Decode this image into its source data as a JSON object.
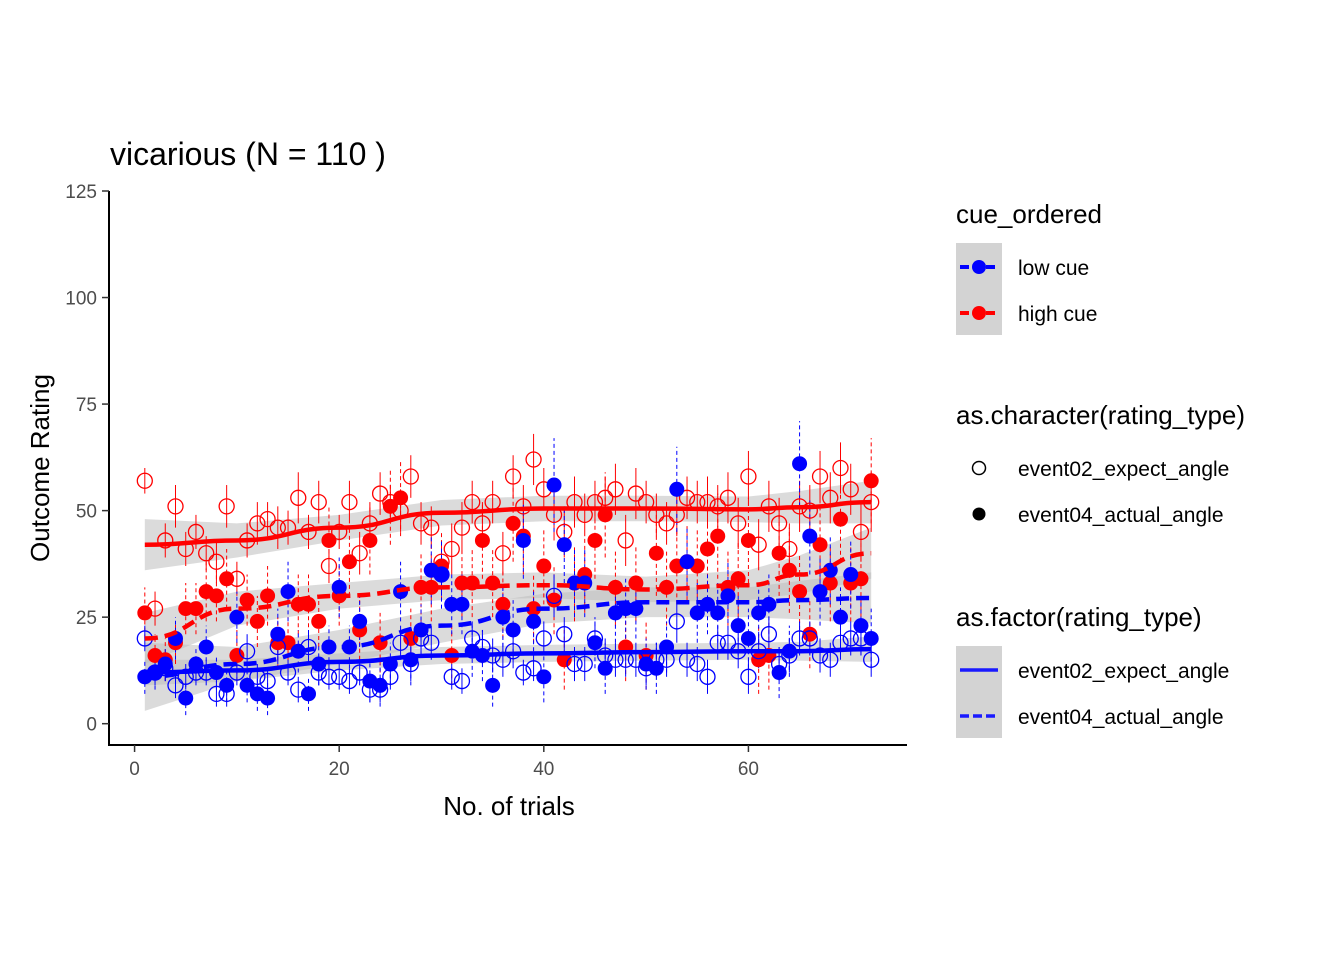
{
  "chart_data": {
    "type": "scatter",
    "title": "vicarious (N =  110 )",
    "xlabel": "No. of trials",
    "ylabel": "Outcome Rating",
    "xlim": [
      -2.5,
      75.5
    ],
    "ylim": [
      -5,
      125
    ],
    "xticks": [
      0,
      20,
      40,
      60
    ],
    "xtick_labels": [
      "0",
      "20",
      "40",
      "60"
    ],
    "yticks": [
      0,
      25,
      50,
      75,
      100,
      125
    ],
    "ytick_labels": [
      "0",
      "25",
      "50",
      "75",
      "100",
      "125"
    ],
    "grid": false,
    "legend_position": "right",
    "colors": {
      "low cue": "#0000ff",
      "high cue": "#ff0000",
      "ribbon": "#bebebe"
    },
    "legends": {
      "cue": {
        "title": "cue_ordered",
        "entries": [
          "low cue",
          "high cue"
        ]
      },
      "shape": {
        "title": "as.character(rating_type)",
        "entries": [
          "event02_expect_angle",
          "event04_actual_angle"
        ]
      },
      "linetype": {
        "title": "as.factor(rating_type)",
        "entries": [
          "event02_expect_angle",
          "event04_actual_angle"
        ]
      }
    },
    "series": [
      {
        "cue": "high cue",
        "rating_type": "event02_expect_angle",
        "shape": "open",
        "linetype": "solid",
        "x": [
          1,
          2,
          3,
          4,
          5,
          6,
          7,
          8,
          9,
          10,
          11,
          12,
          13,
          14,
          15,
          16,
          17,
          18,
          19,
          20,
          21,
          22,
          23,
          24,
          25,
          26,
          27,
          28,
          29,
          30,
          31,
          32,
          33,
          34,
          35,
          36,
          37,
          38,
          39,
          40,
          41,
          42,
          43,
          44,
          45,
          46,
          47,
          48,
          49,
          50,
          51,
          52,
          53,
          54,
          55,
          56,
          57,
          58,
          59,
          60,
          61,
          62,
          63,
          64,
          65,
          66,
          67,
          68,
          69,
          70,
          71,
          72
        ],
        "y": [
          57,
          27,
          43,
          51,
          41,
          45,
          40,
          38,
          51,
          34,
          43,
          47,
          48,
          46,
          46,
          53,
          45,
          52,
          37,
          45,
          52,
          40,
          47,
          54,
          52,
          50,
          58,
          47,
          46,
          38,
          41,
          46,
          52,
          47,
          52,
          40,
          58,
          51,
          62,
          55,
          49,
          45,
          52,
          49,
          52,
          53,
          55,
          43,
          54,
          52,
          49,
          47,
          49,
          53,
          52,
          52,
          51,
          53,
          47,
          58,
          42,
          51,
          47,
          41,
          51,
          50,
          58,
          53,
          60,
          55,
          45,
          52
        ],
        "err": [
          3,
          4,
          4,
          5,
          4,
          4,
          4,
          5,
          5,
          4,
          4,
          5,
          4,
          5,
          4,
          6,
          4,
          5,
          4,
          4,
          5,
          5,
          5,
          5,
          4,
          5,
          5,
          5,
          5,
          5,
          6,
          6,
          5,
          5,
          5,
          5,
          5,
          5,
          6,
          5,
          6,
          6,
          6,
          5,
          5,
          5,
          6,
          6,
          6,
          5,
          5,
          5,
          5,
          5,
          5,
          6,
          5,
          6,
          6,
          6,
          6,
          6,
          6,
          6,
          6,
          6,
          6,
          6,
          6,
          6,
          7,
          7
        ]
      },
      {
        "cue": "high cue",
        "rating_type": "event04_actual_angle",
        "shape": "filled",
        "linetype": "dashed",
        "x": [
          1,
          2,
          3,
          4,
          5,
          6,
          7,
          8,
          9,
          10,
          11,
          12,
          13,
          14,
          15,
          16,
          17,
          18,
          19,
          20,
          21,
          22,
          23,
          24,
          25,
          26,
          27,
          28,
          29,
          30,
          31,
          32,
          33,
          34,
          35,
          36,
          37,
          38,
          39,
          40,
          41,
          42,
          43,
          44,
          45,
          46,
          47,
          48,
          49,
          50,
          51,
          52,
          53,
          54,
          55,
          56,
          57,
          58,
          59,
          60,
          61,
          62,
          63,
          64,
          65,
          66,
          67,
          68,
          69,
          70,
          71,
          72
        ],
        "y": [
          26,
          16,
          15,
          19,
          27,
          27,
          31,
          30,
          34,
          16,
          29,
          24,
          30,
          19,
          19,
          28,
          28,
          24,
          43,
          30,
          38,
          22,
          43,
          19,
          51,
          53,
          20,
          32,
          32,
          37,
          16,
          33,
          33,
          43,
          33,
          28,
          47,
          44,
          27,
          37,
          29,
          15,
          33,
          35,
          43,
          49,
          32,
          18,
          33,
          16,
          40,
          32,
          37,
          38,
          37,
          41,
          44,
          32,
          34,
          43,
          15,
          16,
          40,
          36,
          31,
          21,
          42,
          33,
          48,
          33,
          34,
          57
        ],
        "err": [
          6,
          5,
          5,
          5,
          6,
          6,
          7,
          6,
          7,
          6,
          6,
          6,
          7,
          6,
          6,
          7,
          7,
          6,
          8,
          7,
          8,
          7,
          8,
          7,
          9,
          9,
          7,
          8,
          8,
          8,
          7,
          8,
          8,
          9,
          8,
          8,
          9,
          9,
          8,
          9,
          8,
          7,
          9,
          9,
          9,
          10,
          9,
          8,
          9,
          8,
          10,
          9,
          9,
          9,
          9,
          10,
          10,
          9,
          9,
          10,
          8,
          8,
          10,
          10,
          9,
          8,
          10,
          9,
          10,
          9,
          9,
          10
        ]
      },
      {
        "cue": "low cue",
        "rating_type": "event02_expect_angle",
        "shape": "open",
        "linetype": "solid",
        "x": [
          1,
          2,
          3,
          4,
          5,
          6,
          7,
          8,
          9,
          10,
          11,
          12,
          13,
          14,
          15,
          16,
          17,
          18,
          19,
          20,
          21,
          22,
          23,
          24,
          25,
          26,
          27,
          28,
          29,
          30,
          31,
          32,
          33,
          34,
          35,
          36,
          37,
          38,
          39,
          40,
          41,
          42,
          43,
          44,
          45,
          46,
          47,
          48,
          49,
          50,
          51,
          52,
          53,
          54,
          55,
          56,
          57,
          58,
          59,
          60,
          61,
          62,
          63,
          64,
          65,
          66,
          67,
          68,
          69,
          70,
          71,
          72
        ],
        "y": [
          20,
          12,
          13,
          9,
          11,
          12,
          12,
          7,
          7,
          12,
          17,
          11,
          10,
          18,
          12,
          8,
          18,
          12,
          11,
          11,
          10,
          12,
          8,
          8,
          11,
          19,
          14,
          20,
          19,
          35,
          11,
          10,
          20,
          18,
          16,
          15,
          17,
          12,
          13,
          20,
          30,
          21,
          14,
          14,
          20,
          16,
          15,
          15,
          15,
          13,
          15,
          15,
          24,
          15,
          14,
          11,
          19,
          19,
          17,
          11,
          17,
          21,
          14,
          16,
          20,
          20,
          16,
          15,
          19,
          20,
          20,
          15
        ],
        "err": [
          3,
          3,
          3,
          3,
          3,
          3,
          3,
          3,
          3,
          3,
          4,
          3,
          3,
          4,
          3,
          3,
          4,
          3,
          3,
          3,
          3,
          3,
          3,
          3,
          3,
          4,
          4,
          4,
          4,
          5,
          3,
          3,
          4,
          4,
          4,
          4,
          4,
          3,
          3,
          4,
          5,
          4,
          4,
          4,
          4,
          4,
          4,
          4,
          4,
          4,
          4,
          4,
          5,
          4,
          4,
          4,
          4,
          4,
          4,
          4,
          4,
          4,
          4,
          4,
          4,
          4,
          4,
          4,
          4,
          4,
          4,
          4
        ]
      },
      {
        "cue": "low cue",
        "rating_type": "event04_actual_angle",
        "shape": "filled",
        "linetype": "dashed",
        "x": [
          1,
          2,
          3,
          4,
          5,
          6,
          7,
          8,
          9,
          10,
          11,
          12,
          13,
          14,
          15,
          16,
          17,
          18,
          19,
          20,
          21,
          22,
          23,
          24,
          25,
          26,
          27,
          28,
          29,
          30,
          31,
          32,
          33,
          34,
          35,
          36,
          37,
          38,
          39,
          40,
          41,
          42,
          43,
          44,
          45,
          46,
          47,
          48,
          49,
          50,
          51,
          52,
          53,
          54,
          55,
          56,
          57,
          58,
          59,
          60,
          61,
          62,
          63,
          64,
          65,
          66,
          67,
          68,
          69,
          70,
          71,
          72
        ],
        "y": [
          11,
          12,
          14,
          20,
          6,
          14,
          18,
          12,
          9,
          25,
          9,
          7,
          6,
          21,
          31,
          17,
          7,
          14,
          18,
          32,
          18,
          24,
          10,
          9,
          14,
          31,
          15,
          22,
          36,
          35,
          28,
          28,
          17,
          16,
          9,
          25,
          22,
          43,
          24,
          11,
          56,
          42,
          33,
          33,
          19,
          13,
          26,
          27,
          27,
          14,
          13,
          18,
          55,
          38,
          26,
          28,
          26,
          30,
          23,
          20,
          26,
          28,
          12,
          17,
          61,
          44,
          31,
          36,
          25,
          35,
          23,
          20
        ],
        "err": [
          4,
          4,
          4,
          5,
          4,
          4,
          5,
          4,
          4,
          6,
          4,
          4,
          4,
          6,
          7,
          5,
          4,
          5,
          5,
          7,
          5,
          6,
          5,
          5,
          5,
          7,
          6,
          6,
          8,
          8,
          7,
          7,
          6,
          6,
          5,
          7,
          7,
          9,
          7,
          6,
          11,
          9,
          8,
          8,
          6,
          6,
          7,
          7,
          7,
          6,
          6,
          6,
          10,
          8,
          7,
          7,
          7,
          8,
          7,
          7,
          7,
          7,
          6,
          6,
          10,
          9,
          8,
          8,
          7,
          8,
          7,
          7
        ]
      }
    ],
    "smooth": [
      {
        "cue": "high cue",
        "linetype": "solid",
        "x": [
          1,
          10,
          20,
          30,
          40,
          50,
          60,
          65,
          72
        ],
        "y": [
          42,
          43,
          46,
          49.5,
          50.5,
          50.5,
          50.3,
          50.8,
          52
        ],
        "ymin": [
          36,
          39,
          43,
          46.5,
          47.5,
          47.5,
          47.3,
          47,
          47
        ],
        "ymax": [
          48,
          47,
          49,
          52.5,
          53.5,
          53.5,
          53.3,
          54.6,
          57
        ]
      },
      {
        "cue": "high cue",
        "linetype": "dashed",
        "x": [
          1,
          10,
          20,
          30,
          40,
          50,
          60,
          65,
          72
        ],
        "y": [
          20,
          27,
          30,
          32,
          32.5,
          31.5,
          32.5,
          35,
          40
        ],
        "ymin": [
          14,
          23,
          27,
          29,
          29.5,
          28.5,
          29,
          30.5,
          34
        ],
        "ymax": [
          26,
          31,
          33,
          35,
          35.5,
          34.5,
          36,
          39.5,
          46
        ]
      },
      {
        "cue": "low cue",
        "linetype": "solid",
        "x": [
          1,
          10,
          20,
          30,
          40,
          50,
          60,
          65,
          72
        ],
        "y": [
          12,
          12.5,
          14.5,
          16,
          16.5,
          16.8,
          17,
          17,
          17.5
        ],
        "ymin": [
          9,
          10,
          12.5,
          14,
          14.5,
          14.8,
          15,
          14.8,
          14.5
        ],
        "ymax": [
          15,
          15,
          16.5,
          18,
          18.5,
          18.8,
          19,
          19.2,
          20.5
        ]
      },
      {
        "cue": "low cue",
        "linetype": "dashed",
        "x": [
          1,
          10,
          20,
          30,
          40,
          50,
          60,
          65,
          72
        ],
        "y": [
          11,
          14,
          18,
          23,
          27,
          28.5,
          28.5,
          29,
          29.5
        ],
        "ymin": [
          3,
          10,
          14,
          19,
          23.5,
          25,
          25,
          24.5,
          23.5
        ],
        "ymax": [
          19,
          18,
          22,
          27,
          30.5,
          32,
          32,
          33.5,
          35.5
        ]
      }
    ]
  }
}
